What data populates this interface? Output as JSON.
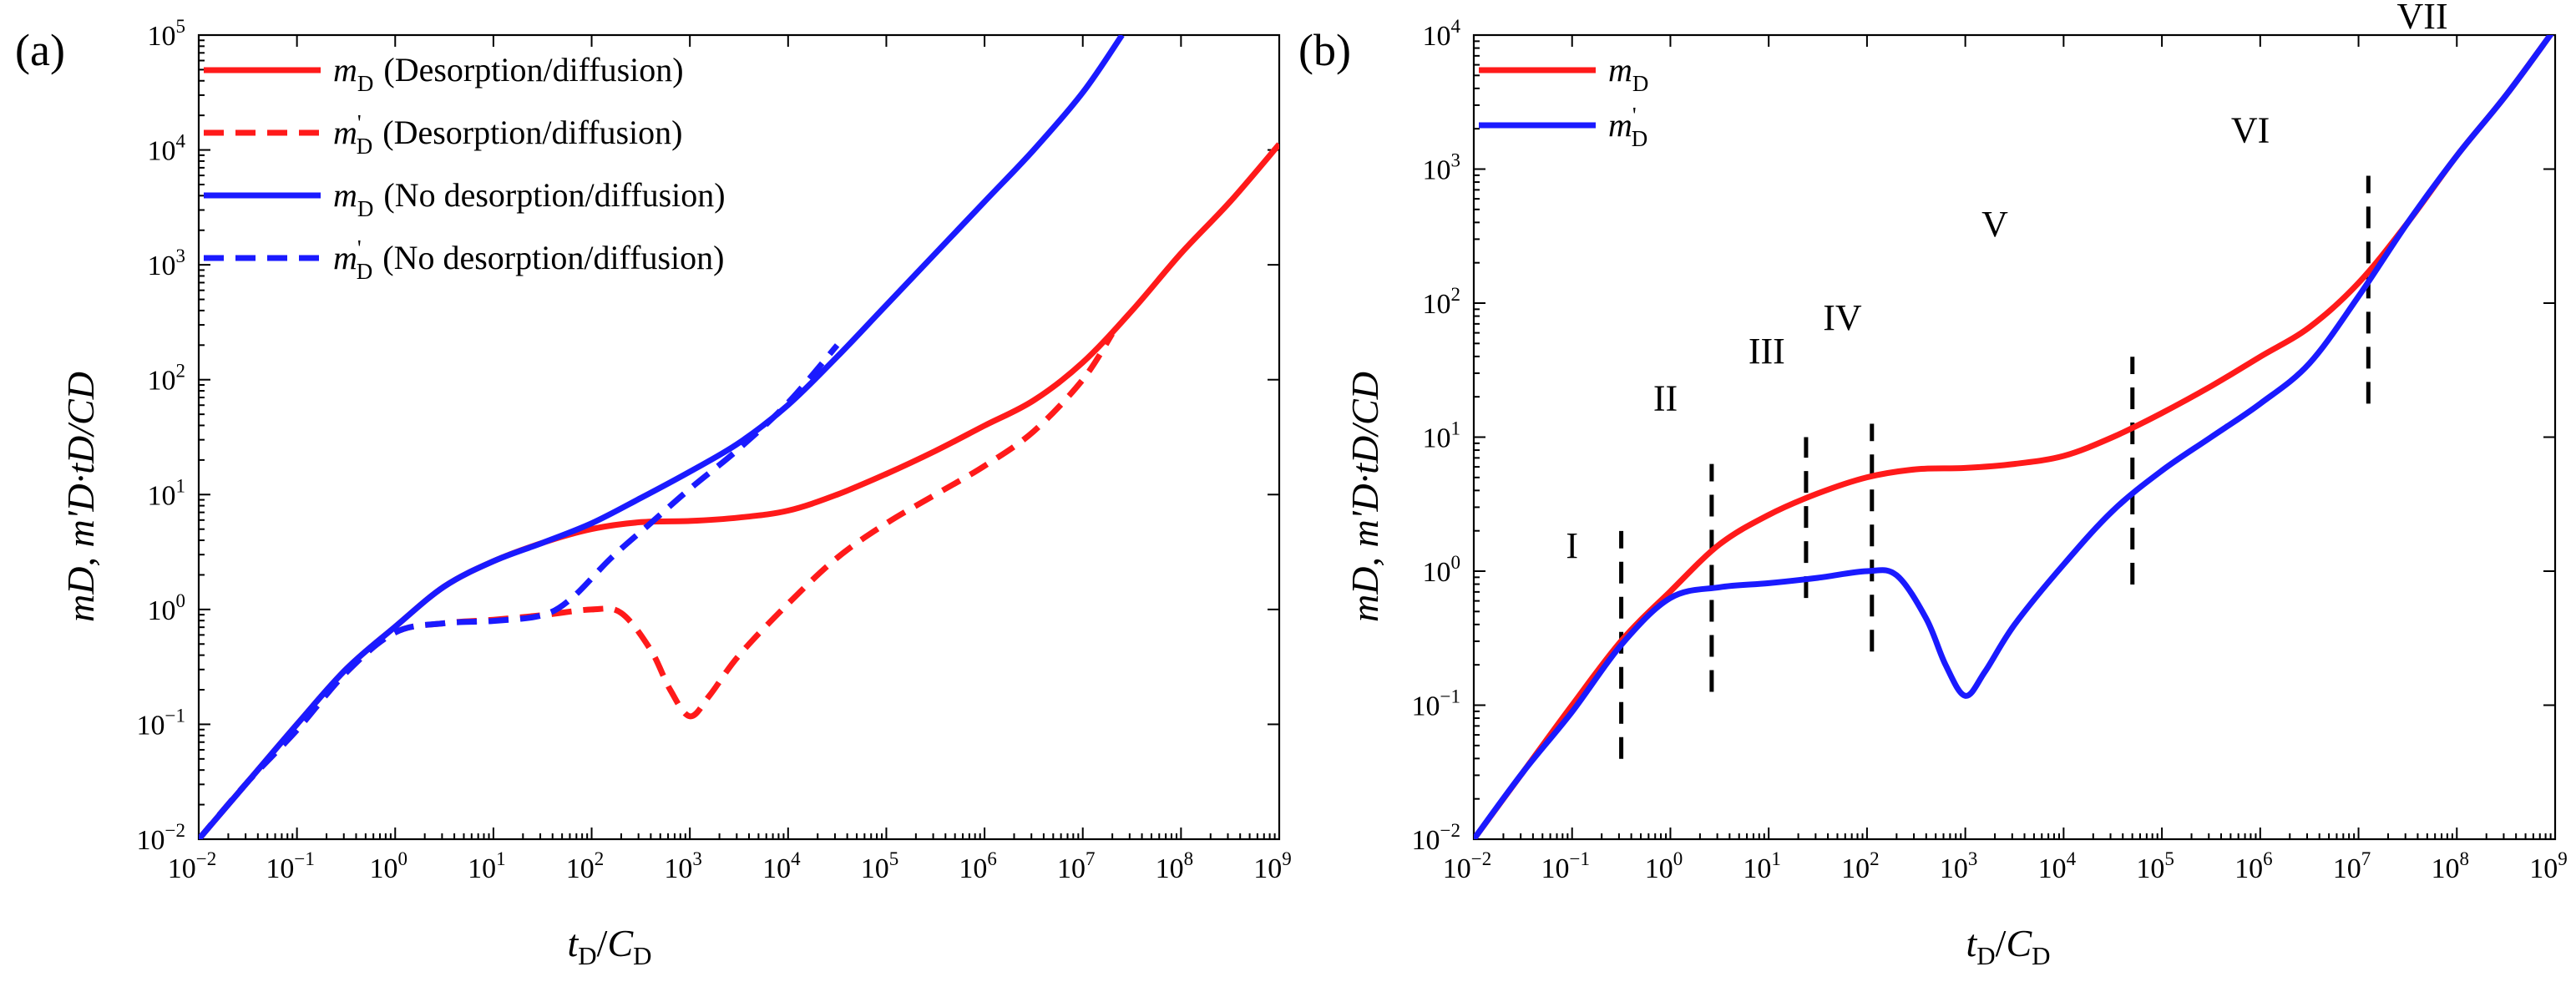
{
  "chart_data": [
    {
      "panel_label": "(a)",
      "type": "line",
      "xscale": "log",
      "yscale": "log",
      "xlim": [
        0.01,
        1000000000
      ],
      "ylim": [
        0.01,
        100000
      ],
      "xlabel": {
        "base": "t",
        "sub1": "D",
        "slash": "/",
        "base2": "C",
        "sub2": "D"
      },
      "ylabel": "mD, m'D·tD/CD",
      "xtick_labels": [
        "10",
        "10",
        "10",
        "10",
        "10",
        "10",
        "10",
        "10",
        "10",
        "10",
        "10",
        "10"
      ],
      "xtick_exponents": [
        "−2",
        "−1",
        "0",
        "1",
        "2",
        "3",
        "4",
        "5",
        "6",
        "7",
        "8",
        "9"
      ],
      "ytick_labels": [
        "10",
        "10",
        "10",
        "10",
        "10",
        "10",
        "10",
        "10"
      ],
      "ytick_exponents": [
        "−2",
        "−1",
        "0",
        "1",
        "2",
        "3",
        "4",
        "5"
      ],
      "legend_position": "top-left",
      "series": [
        {
          "name": "mD (Desorption/diffusion)",
          "legend_base": "m",
          "legend_sub": "D",
          "legend_prime": "",
          "legend_text": "(Desorption/diffusion)",
          "color": "#ff1a1a",
          "dash": "solid",
          "x": [
            -2,
            -1.5,
            -1,
            -0.5,
            0,
            0.5,
            1,
            1.5,
            2,
            2.5,
            3,
            3.5,
            4,
            4.5,
            5,
            5.5,
            6,
            6.5,
            7,
            7.5,
            8,
            8.5,
            9
          ],
          "y": [
            -2,
            -1.5,
            -1,
            -0.52,
            -0.15,
            0.2,
            0.42,
            0.58,
            0.7,
            0.76,
            0.77,
            0.8,
            0.86,
            1.0,
            1.18,
            1.38,
            1.6,
            1.82,
            2.15,
            2.6,
            3.1,
            3.55,
            4.05
          ]
        },
        {
          "name": "m'D (Desorption/diffusion)",
          "legend_base": "m",
          "legend_sub": "D",
          "legend_prime": "'",
          "legend_text": "(Desorption/diffusion)",
          "color": "#ff1a1a",
          "dash": "dashed",
          "x": [
            -2,
            -1.5,
            -1,
            -0.5,
            0,
            0.5,
            1,
            1.5,
            2,
            2.3,
            2.6,
            2.8,
            3,
            3.2,
            3.5,
            4,
            4.5,
            5,
            5.5,
            6,
            6.5,
            7,
            7.3
          ],
          "y": [
            -2,
            -1.5,
            -1.05,
            -0.55,
            -0.2,
            -0.12,
            -0.09,
            -0.05,
            0.0,
            -0.03,
            -0.35,
            -0.7,
            -0.93,
            -0.75,
            -0.4,
            0.05,
            0.45,
            0.75,
            1.0,
            1.25,
            1.55,
            2.0,
            2.4
          ]
        },
        {
          "name": "mD (No desorption/diffusion)",
          "legend_base": "m",
          "legend_sub": "D",
          "legend_prime": "",
          "legend_text": "(No desorption/diffusion)",
          "color": "#1a1aff",
          "dash": "solid",
          "x": [
            -2,
            -1.5,
            -1,
            -0.5,
            0,
            0.5,
            1,
            1.5,
            2,
            2.5,
            3,
            3.5,
            4,
            4.5,
            5,
            5.5,
            6,
            6.5,
            7,
            7.4
          ],
          "y": [
            -2,
            -1.5,
            -1,
            -0.52,
            -0.15,
            0.2,
            0.42,
            0.58,
            0.75,
            0.97,
            1.2,
            1.45,
            1.78,
            2.2,
            2.65,
            3.1,
            3.55,
            4.0,
            4.5,
            5.0
          ]
        },
        {
          "name": "m'D (No desorption/diffusion)",
          "legend_base": "m",
          "legend_sub": "D",
          "legend_prime": "'",
          "legend_text": "(No desorption/diffusion)",
          "color": "#1a1aff",
          "dash": "dashed",
          "x": [
            -2,
            -1.5,
            -1,
            -0.5,
            0,
            0.5,
            1,
            1.5,
            1.8,
            2.2,
            2.6,
            3,
            3.5,
            4,
            4.5
          ],
          "y": [
            -2,
            -1.5,
            -1.05,
            -0.55,
            -0.2,
            -0.12,
            -0.1,
            -0.05,
            0.1,
            0.45,
            0.75,
            1.05,
            1.4,
            1.8,
            2.3
          ]
        }
      ]
    },
    {
      "panel_label": "(b)",
      "type": "line",
      "xscale": "log",
      "yscale": "log",
      "xlim": [
        0.01,
        1000000000
      ],
      "ylim": [
        0.01,
        10000
      ],
      "xlabel": {
        "base": "t",
        "sub1": "D",
        "slash": "/",
        "base2": "C",
        "sub2": "D"
      },
      "ylabel": "mD, m'D·tD/CD",
      "xtick_labels": [
        "10",
        "10",
        "10",
        "10",
        "10",
        "10",
        "10",
        "10",
        "10",
        "10",
        "10",
        "10"
      ],
      "xtick_exponents": [
        "−2",
        "−1",
        "0",
        "1",
        "2",
        "3",
        "4",
        "5",
        "6",
        "7",
        "8",
        "9"
      ],
      "ytick_labels": [
        "10",
        "10",
        "10",
        "10",
        "10",
        "10",
        "10"
      ],
      "ytick_exponents": [
        "−2",
        "−1",
        "0",
        "1",
        "2",
        "3",
        "4"
      ],
      "legend_position": "top-left",
      "series": [
        {
          "name": "mD",
          "legend_base": "m",
          "legend_sub": "D",
          "legend_prime": "",
          "legend_text": "",
          "color": "#ff1a1a",
          "dash": "solid",
          "x": [
            -2,
            -1.5,
            -1,
            -0.5,
            0,
            0.5,
            1,
            1.5,
            2,
            2.5,
            3,
            3.5,
            4,
            4.5,
            5,
            5.5,
            6,
            6.5,
            7,
            7.5,
            8,
            8.5,
            9
          ],
          "y": [
            -2,
            -1.5,
            -1,
            -0.52,
            -0.15,
            0.2,
            0.42,
            0.58,
            0.7,
            0.76,
            0.77,
            0.8,
            0.86,
            1.0,
            1.18,
            1.38,
            1.6,
            1.82,
            2.15,
            2.6,
            3.1,
            3.55,
            4.05
          ]
        },
        {
          "name": "m'D",
          "legend_base": "m",
          "legend_sub": "D",
          "legend_prime": "'",
          "legend_text": "",
          "color": "#1a1aff",
          "dash": "solid",
          "x": [
            -2,
            -1.5,
            -1,
            -0.5,
            0,
            0.5,
            1,
            1.5,
            2,
            2.3,
            2.6,
            2.8,
            3,
            3.2,
            3.5,
            4,
            4.5,
            5,
            5.5,
            6,
            6.5,
            7,
            7.5,
            8,
            8.5,
            9
          ],
          "y": [
            -2,
            -1.5,
            -1.05,
            -0.55,
            -0.2,
            -0.12,
            -0.09,
            -0.05,
            0.0,
            -0.03,
            -0.35,
            -0.7,
            -0.93,
            -0.75,
            -0.4,
            0.05,
            0.45,
            0.75,
            1.0,
            1.25,
            1.55,
            2.05,
            2.6,
            3.1,
            3.55,
            4.05
          ]
        }
      ],
      "regions": [
        {
          "label": "I",
          "x": -1.0,
          "y": 0.1
        },
        {
          "label": "II",
          "x": -0.05,
          "y": 1.2
        },
        {
          "label": "III",
          "x": 0.98,
          "y": 1.55
        },
        {
          "label": "IV",
          "x": 1.75,
          "y": 1.8
        },
        {
          "label": "V",
          "x": 3.3,
          "y": 2.5
        },
        {
          "label": "VI",
          "x": 5.9,
          "y": 3.2
        },
        {
          "label": "VII",
          "x": 7.65,
          "y": 4.05
        }
      ],
      "dividers": [
        {
          "x": -0.5,
          "y0": -1.4,
          "y1": 0.3
        },
        {
          "x": 0.42,
          "y0": -0.9,
          "y1": 0.8
        },
        {
          "x": 1.38,
          "y0": -0.2,
          "y1": 1.0
        },
        {
          "x": 2.05,
          "y0": -0.6,
          "y1": 1.1
        },
        {
          "x": 4.7,
          "y0": -0.1,
          "y1": 1.6
        },
        {
          "x": 7.1,
          "y0": 1.25,
          "y1": 2.95
        }
      ]
    }
  ]
}
